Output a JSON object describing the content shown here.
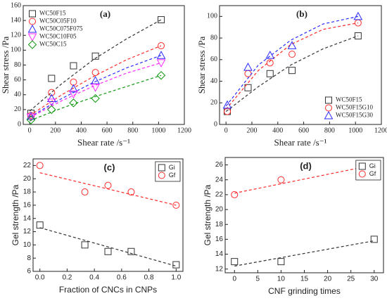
{
  "chart_data": [
    {
      "type": "scatter",
      "title": "(a)",
      "xlabel": "Shear rate /s⁻¹",
      "ylabel": "Shear stress /Pa",
      "xlim": [
        -50,
        1200
      ],
      "xticks": [
        0,
        200,
        400,
        600,
        800,
        1000,
        1200
      ],
      "ylim": [
        0,
        160
      ],
      "yticks": [
        0,
        20,
        40,
        60,
        80,
        100,
        120,
        140,
        160
      ],
      "legend": "upper left",
      "series": [
        {
          "name": "WC50F15",
          "color": "#333333",
          "marker": "square",
          "x": [
            10,
            170,
            340,
            510,
            1020
          ],
          "values": [
            15,
            62,
            79,
            92,
            141
          ],
          "fit": {
            "x": [
              0,
              250,
              500,
              750,
              1020
            ],
            "y": [
              18,
              55,
              88,
              115,
              141
            ]
          }
        },
        {
          "name": "WC50C05F10",
          "color": "#ff2a2a",
          "marker": "circle",
          "x": [
            10,
            170,
            340,
            510,
            1020
          ],
          "values": [
            12,
            43,
            57,
            70,
            106
          ],
          "fit": {
            "x": [
              0,
              250,
              500,
              750,
              1020
            ],
            "y": [
              12,
              40,
              65,
              87,
              106
            ]
          }
        },
        {
          "name": "WC50C075F075",
          "color": "#2a2aff",
          "marker": "triangle",
          "x": [
            10,
            170,
            340,
            510,
            1020
          ],
          "values": [
            11,
            35,
            48,
            59,
            93
          ],
          "fit": {
            "x": [
              0,
              250,
              500,
              750,
              1020
            ],
            "y": [
              10,
              35,
              57,
              76,
              93
            ]
          }
        },
        {
          "name": "WC50C10F05",
          "color": "#ff2aff",
          "marker": "triangle-down",
          "x": [
            10,
            170,
            340,
            510,
            1020
          ],
          "values": [
            10,
            30,
            41,
            50,
            83
          ],
          "fit": {
            "x": [
              0,
              250,
              500,
              750,
              1020
            ],
            "y": [
              9,
              32,
              52,
              69,
              83
            ]
          }
        },
        {
          "name": "WC50C15",
          "color": "#119911",
          "marker": "diamond",
          "x": [
            10,
            170,
            340,
            510,
            1020
          ],
          "values": [
            6,
            20,
            29,
            35,
            66
          ],
          "fit": {
            "x": [
              0,
              250,
              500,
              750,
              1020
            ],
            "y": [
              5,
              22,
              37,
              51,
              66
            ]
          }
        }
      ]
    },
    {
      "type": "scatter",
      "title": "(b)",
      "xlabel": "Shear rate /s⁻¹",
      "ylabel": "Shear stress /Pa",
      "xlim": [
        -50,
        1200
      ],
      "xticks": [
        0,
        200,
        400,
        600,
        800,
        1000,
        1200
      ],
      "ylim": [
        0,
        110
      ],
      "yticks": [
        0,
        20,
        40,
        60,
        80,
        100
      ],
      "legend": "lower right",
      "series": [
        {
          "name": "WC50F15",
          "color": "#333333",
          "marker": "square",
          "x": [
            10,
            170,
            340,
            510,
            1020
          ],
          "values": [
            12,
            34,
            47,
            50,
            82
          ],
          "fit": {
            "x": [
              0,
              250,
              500,
              750,
              1020
            ],
            "y": [
              12,
              35,
              55,
              70,
              82
            ]
          }
        },
        {
          "name": "WC50F15G10",
          "color": "#ff2a2a",
          "marker": "circle",
          "x": [
            10,
            170,
            340,
            510,
            1020
          ],
          "values": [
            12,
            47,
            57,
            65,
            94
          ],
          "fit": {
            "x": [
              0,
              250,
              500,
              750,
              1020
            ],
            "y": [
              14,
              50,
              74,
              88,
              94
            ]
          }
        },
        {
          "name": "WC50F15G30",
          "color": "#2a2aff",
          "marker": "triangle",
          "x": [
            10,
            170,
            340,
            510,
            1020
          ],
          "values": [
            18,
            53,
            64,
            73,
            100
          ],
          "fit": {
            "x": [
              0,
              250,
              500,
              750,
              1020
            ],
            "y": [
              17,
              55,
              78,
              93,
              100
            ]
          }
        }
      ]
    },
    {
      "type": "scatter",
      "title": "(c)",
      "xlabel": "Fraction of CNCs in CNPs",
      "ylabel": "Gel strength /Pa",
      "xlim": [
        -0.05,
        1.05
      ],
      "xticks": [
        {
          "value": 0,
          "label": "0.0"
        },
        0.2,
        0.4,
        0.6,
        0.8,
        {
          "value": 1,
          "label": "1.0"
        }
      ],
      "ylim": [
        6,
        23
      ],
      "yticks": [
        6,
        8,
        10,
        12,
        14,
        16,
        18,
        20,
        22
      ],
      "legend": "upper right",
      "series": [
        {
          "name": "Gi",
          "color": "#333333",
          "marker": "square",
          "x": [
            0,
            0.33,
            0.5,
            0.67,
            1.0
          ],
          "values": [
            13,
            10,
            9,
            9,
            7
          ],
          "fit": {
            "x": [
              0,
              1
            ],
            "y": [
              12.6,
              6.8
            ]
          }
        },
        {
          "name": "Gf",
          "color": "#ff2a2a",
          "marker": "circle",
          "x": [
            0,
            0.33,
            0.5,
            0.67,
            1.0
          ],
          "values": [
            22,
            18,
            19,
            18,
            16
          ],
          "fit": {
            "x": [
              0,
              1
            ],
            "y": [
              20.9,
              16.0
            ]
          }
        }
      ]
    },
    {
      "type": "scatter",
      "title": "(d)",
      "xlabel": "CNF grinding times",
      "ylabel": "Gel strength /Pa",
      "xlim": [
        -2,
        32
      ],
      "xticks": [
        0,
        5,
        10,
        15,
        20,
        25,
        30
      ],
      "ylim": [
        11.5,
        27
      ],
      "yticks": [
        12,
        14,
        16,
        18,
        20,
        22,
        24,
        26
      ],
      "legend": "upper right",
      "series": [
        {
          "name": "Gi",
          "color": "#333333",
          "marker": "square",
          "x": [
            0,
            10,
            30
          ],
          "values": [
            13,
            13,
            16
          ],
          "fit": {
            "x": [
              0,
              30
            ],
            "y": [
              12.4,
              15.8
            ]
          }
        },
        {
          "name": "Gf",
          "color": "#ff2a2a",
          "marker": "circle",
          "x": [
            0,
            10,
            30
          ],
          "values": [
            22,
            24,
            26
          ],
          "fit": {
            "x": [
              0,
              30
            ],
            "y": [
              22.2,
              26
            ]
          }
        }
      ]
    }
  ]
}
